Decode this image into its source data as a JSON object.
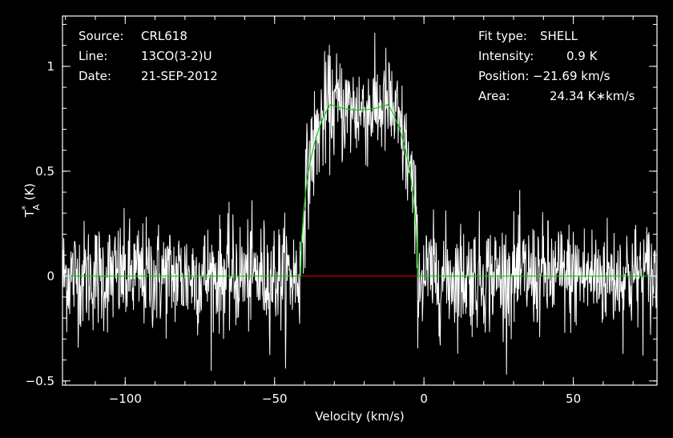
{
  "header_left": [
    {
      "label": "Source:",
      "value": "CRL618"
    },
    {
      "label": "Line:",
      "value": "13CO(3-2)U"
    },
    {
      "label": "Date:",
      "value": "21-SEP-2012"
    }
  ],
  "header_right": [
    {
      "label": "Fit type:",
      "value": "SHELL"
    },
    {
      "label": "Intensity:",
      "value": "0.9 K"
    },
    {
      "label": "Position:",
      "value": "−21.69 km/s"
    },
    {
      "label": "Area:",
      "value": "24.34 K∗km/s"
    }
  ],
  "colors": {
    "background": "#000000",
    "spectrum": "#ffffff",
    "fit": "#00d000",
    "baseline_window": "#d00000",
    "axes": "#ffffff"
  },
  "chart_data": {
    "type": "line",
    "xlabel": "Velocity (km/s)",
    "ylabel_main": "T",
    "ylabel_sup": "*",
    "ylabel_sub": "A",
    "ylabel_unit": " (K)",
    "xlim": [
      -121,
      78
    ],
    "ylim": [
      -0.52,
      1.24
    ],
    "x_ticks": [
      -100,
      -50,
      0,
      50
    ],
    "x_tick_labels": [
      "−100",
      "−50",
      "0",
      "50"
    ],
    "y_ticks": [
      -0.5,
      0,
      0.5,
      1
    ],
    "y_tick_labels": [
      "−0.5",
      "0",
      "0.5",
      "1"
    ],
    "grid": false,
    "spectrum": {
      "x_start": -121,
      "x_end": 78,
      "noise_rms": 0.13,
      "profile": {
        "type": "shell",
        "center": -21.69,
        "peak": 0.9,
        "half_width": 19.5,
        "horn_depth": 0.12
      }
    },
    "fit": {
      "type": "shell",
      "center": -21.69,
      "peak": 0.9,
      "area": 24.34,
      "half_width": 19.5
    },
    "baseline_window": {
      "x": [
        -44,
        -2
      ],
      "y": 0
    }
  }
}
